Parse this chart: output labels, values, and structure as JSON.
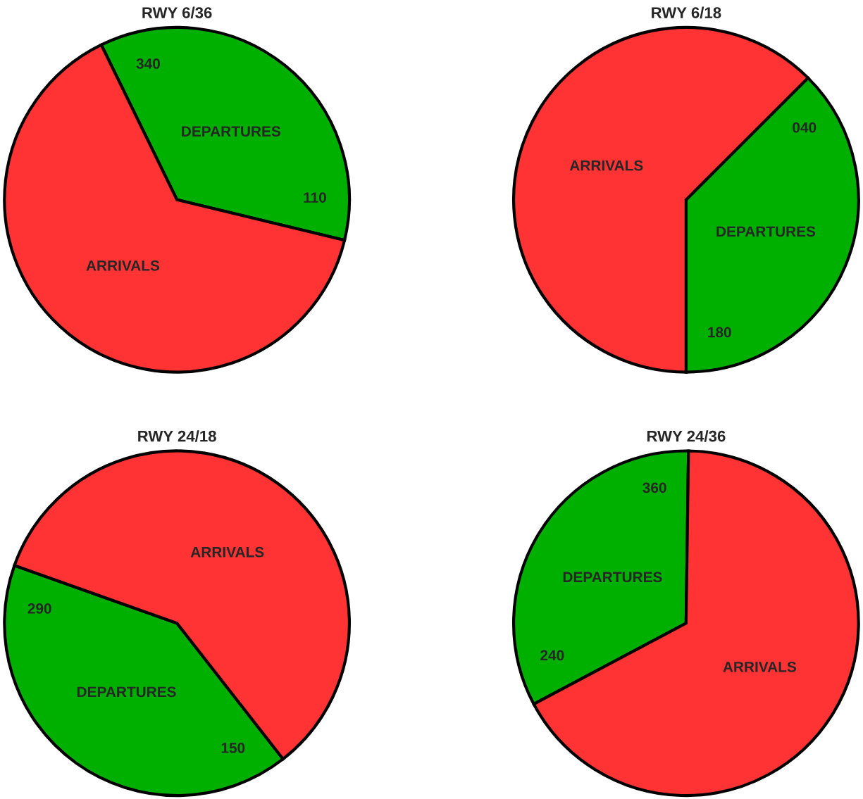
{
  "chart_data": [
    {
      "type": "pie",
      "title": "RWY 6/36",
      "categories": [
        "DEPARTURES",
        "ARRIVALS"
      ],
      "values": [
        36,
        64
      ],
      "colors": [
        "#00b000",
        "#ff3333"
      ],
      "annotations": [
        "340",
        "110"
      ]
    },
    {
      "type": "pie",
      "title": "RWY 6/18",
      "categories": [
        "DEPARTURES",
        "ARRIVALS"
      ],
      "values": [
        37.5,
        62.5
      ],
      "colors": [
        "#00b000",
        "#ff3333"
      ],
      "annotations": [
        "040",
        "180"
      ]
    },
    {
      "type": "pie",
      "title": "RWY 24/18",
      "categories": [
        "DEPARTURES",
        "ARRIVALS"
      ],
      "values": [
        41,
        59
      ],
      "colors": [
        "#00b000",
        "#ff3333"
      ],
      "annotations": [
        "150",
        "290"
      ]
    },
    {
      "type": "pie",
      "title": "RWY 24/36",
      "categories": [
        "DEPARTURES",
        "ARRIVALS"
      ],
      "values": [
        33,
        67
      ],
      "colors": [
        "#00b000",
        "#ff3333"
      ],
      "annotations": [
        "240",
        "360"
      ]
    }
  ]
}
